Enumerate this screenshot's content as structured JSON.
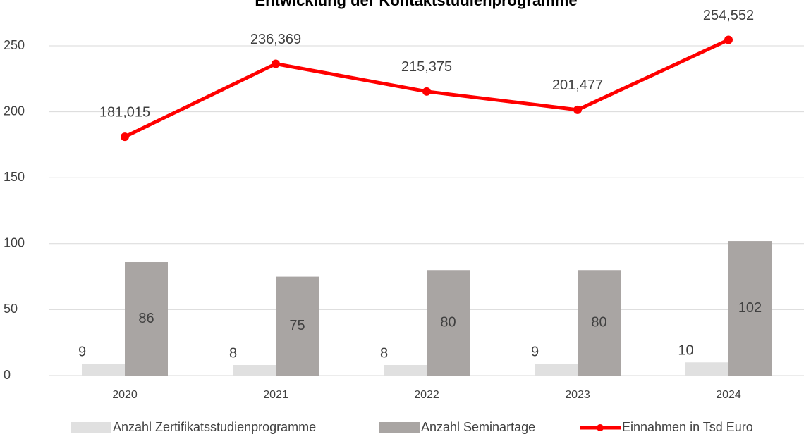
{
  "chart_data": {
    "type": "bar_line",
    "title": "Entwicklung der Kontaktstudienprogramme",
    "categories": [
      "2020",
      "2021",
      "2022",
      "2023",
      "2024"
    ],
    "series": [
      {
        "name": "Anzahl Zertifikatsstudienprogramme",
        "type": "bar",
        "color": "#e0e0e0",
        "values": [
          9,
          8,
          8,
          9,
          10
        ]
      },
      {
        "name": "Anzahl Seminartage",
        "type": "bar",
        "color": "#a9a5a3",
        "values": [
          86,
          75,
          80,
          80,
          102
        ]
      },
      {
        "name": "Einnahmen in Tsd Euro",
        "type": "line",
        "color": "#ff0000",
        "values": [
          181.015,
          236.369,
          215.375,
          201.477,
          254.552
        ],
        "value_labels": [
          "181,015",
          "236,369",
          "215,375",
          "201,477",
          "254,552"
        ]
      }
    ],
    "ylim": [
      0,
      250
    ],
    "yticks": [
      0,
      50,
      100,
      150,
      200,
      250
    ],
    "grid": true,
    "legend": "bottom"
  }
}
